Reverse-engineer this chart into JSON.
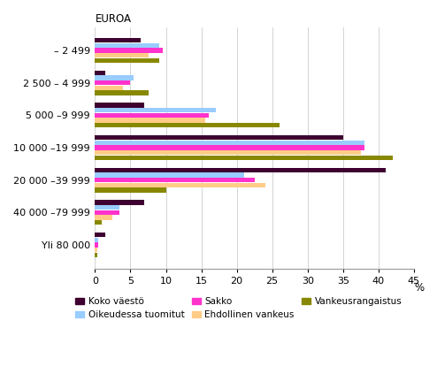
{
  "ylabel": "EUROA",
  "categories": [
    "– 2 499",
    "2 500 – 4 999",
    "5 000 –9 999",
    "10 000 –19 999",
    "20 000 –39 999",
    "40 000 –79 999",
    "Yli 80 000"
  ],
  "series": [
    {
      "name": "Koko väestö",
      "color": "#3d0030",
      "values": [
        6.5,
        1.5,
        7.0,
        35.0,
        41.0,
        7.0,
        1.5
      ]
    },
    {
      "name": "Oikeudessa tuomitut",
      "color": "#99ccff",
      "values": [
        9.0,
        5.5,
        17.0,
        38.0,
        21.0,
        3.5,
        0.5
      ]
    },
    {
      "name": "Sakko",
      "color": "#ff33cc",
      "values": [
        9.5,
        5.0,
        16.0,
        38.0,
        22.5,
        3.5,
        0.5
      ]
    },
    {
      "name": "Ehdollinen vankeus",
      "color": "#ffcc88",
      "values": [
        7.5,
        4.0,
        15.5,
        37.5,
        24.0,
        2.5,
        0.3
      ]
    },
    {
      "name": "Vankeusrangaistus",
      "color": "#888800",
      "values": [
        9.0,
        7.5,
        26.0,
        42.0,
        10.0,
        1.0,
        0.3
      ]
    }
  ],
  "xlim": [
    0,
    45
  ],
  "xticks": [
    0,
    5,
    10,
    15,
    20,
    25,
    30,
    35,
    40,
    45
  ],
  "background_color": "#ffffff",
  "grid_color": "#cccccc",
  "legend_order": [
    0,
    1,
    2,
    3,
    4
  ]
}
